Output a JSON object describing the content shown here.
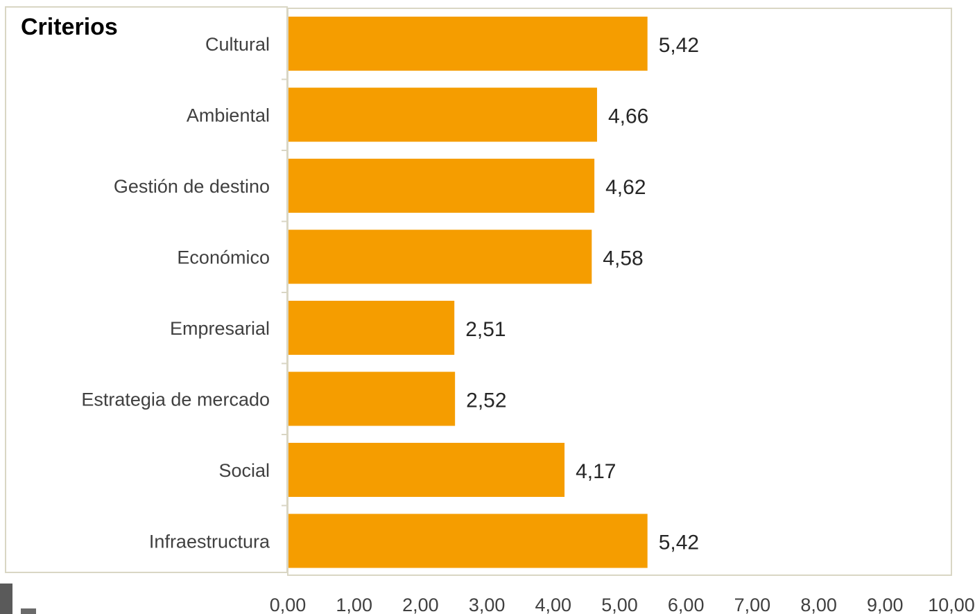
{
  "chart_data": {
    "type": "bar",
    "orientation": "horizontal",
    "title": "Criterios",
    "categories": [
      "Cultural",
      "Ambiental",
      "Gestión de destino",
      "Económico",
      "Empresarial",
      "Estrategia de mercado",
      "Social",
      "Infraestructura"
    ],
    "values": [
      5.42,
      4.66,
      4.62,
      4.58,
      2.51,
      2.52,
      4.17,
      5.42
    ],
    "value_labels": [
      "5,42",
      "4,66",
      "4,62",
      "4,58",
      "2,51",
      "2,52",
      "4,17",
      "5,42"
    ],
    "xlim": [
      0,
      10
    ],
    "x_ticks": [
      0,
      1,
      2,
      3,
      4,
      5,
      6,
      7,
      8,
      9,
      10
    ],
    "x_tick_labels": [
      "0,00",
      "1,00",
      "2,00",
      "3,00",
      "4,00",
      "5,00",
      "6,00",
      "7,00",
      "8,00",
      "9,00",
      "10,00"
    ],
    "bar_color": "#F59D00",
    "border_color": "#D9D6C4",
    "grid": false,
    "legend": "none"
  }
}
